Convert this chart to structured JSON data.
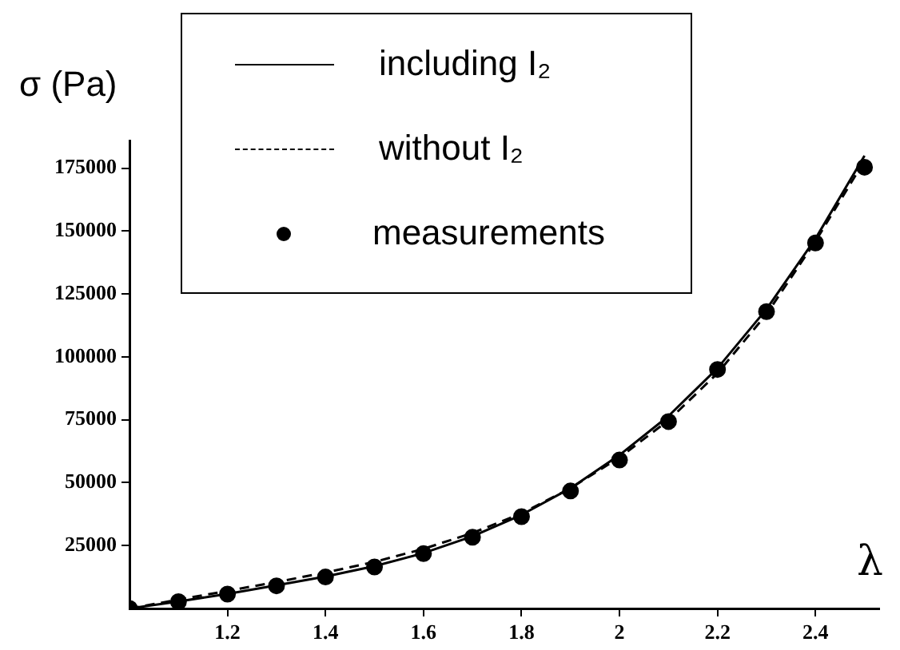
{
  "chart_data": {
    "type": "line",
    "xlabel": "λ",
    "ylabel": "σ (Pa)",
    "x": [
      1.0,
      1.1,
      1.2,
      1.3,
      1.4,
      1.5,
      1.6,
      1.7,
      1.8,
      1.9,
      2.0,
      2.1,
      2.2,
      2.3,
      2.4,
      2.5
    ],
    "series": [
      {
        "name": "including I₂",
        "color": "#000000",
        "line_style": "solid",
        "values": [
          0,
          2800,
          5800,
          9200,
          12700,
          16800,
          22000,
          28700,
          37200,
          47800,
          61000,
          76500,
          95500,
          119000,
          147000,
          180000
        ]
      },
      {
        "name": "without I₂",
        "color": "#000000",
        "line_style": "dashed",
        "values": [
          0,
          3500,
          7000,
          10500,
          14300,
          18500,
          23700,
          30000,
          37800,
          47800,
          60000,
          74800,
          93500,
          117000,
          146000,
          178000
        ]
      },
      {
        "name": "measurements",
        "type": "scatter",
        "marker": "circle",
        "color": "#000000",
        "values": [
          0,
          2700,
          5700,
          9000,
          12500,
          16500,
          21800,
          28300,
          36500,
          46700,
          59000,
          74300,
          95000,
          118000,
          145300,
          175400
        ]
      }
    ],
    "xlim": [
      1.0,
      2.53
    ],
    "xticks": [
      1.2,
      1.4,
      1.6,
      1.8,
      2,
      2.2,
      2.4
    ],
    "ylim": [
      0,
      186000
    ],
    "yticks": [
      25000,
      50000,
      75000,
      100000,
      125000,
      150000,
      175000
    ],
    "grid": false,
    "legend": "top left"
  }
}
